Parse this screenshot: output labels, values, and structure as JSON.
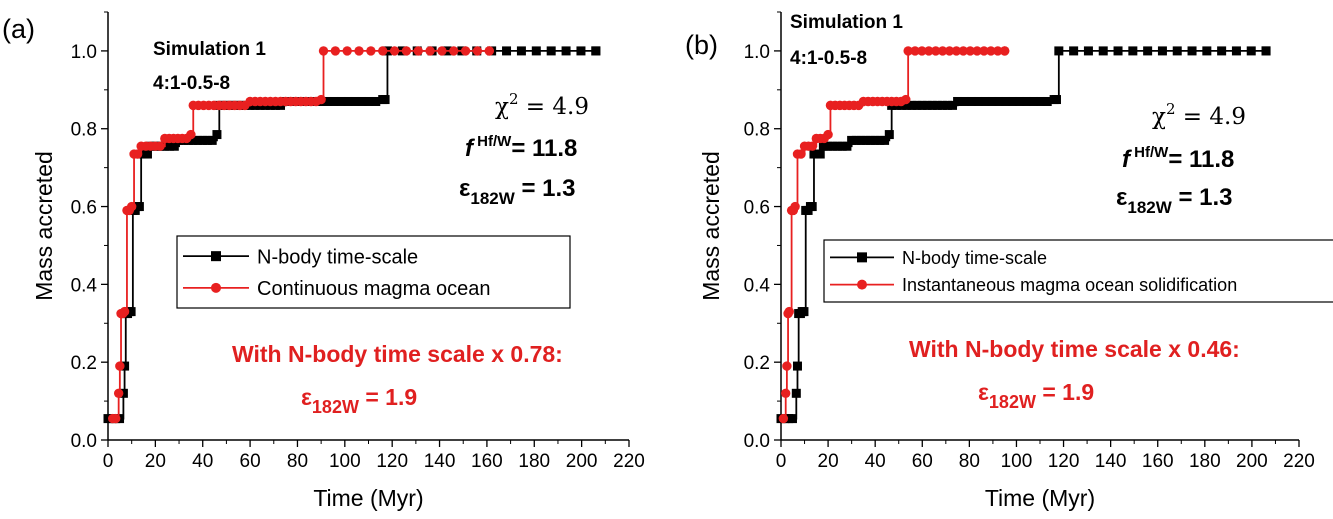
{
  "colors": {
    "black_series": "#000000",
    "red_series": "#e82020",
    "annotation": "#e02020"
  },
  "chart_data": [
    {
      "type": "line",
      "panel_label": "(a)",
      "xlabel": "Time (Myr)",
      "ylabel": "Mass accreted",
      "xlim": [
        0,
        220
      ],
      "ylim": [
        0.0,
        1.1
      ],
      "xticks": [
        0,
        20,
        40,
        60,
        80,
        100,
        120,
        140,
        160,
        180,
        200,
        220
      ],
      "yticks": [
        0.0,
        0.2,
        0.4,
        0.6,
        0.8,
        1.0
      ],
      "ytick_labels": [
        "0.0",
        "0.2",
        "0.4",
        "0.6",
        "0.8",
        "1.0"
      ],
      "grid": false,
      "legend_position": "center",
      "simulation_title": "Simulation 1",
      "simulation_code": "4:1-0.5-8",
      "stats": {
        "chi2_label": "χ",
        "chi2_exp": "2",
        "chi2_value": "= 4.9",
        "f_label": "f",
        "f_sup": "Hf/W",
        "f_value": "= 11.8",
        "eps_label": "ε",
        "eps_sub": "182W",
        "eps_value": "= 1.3"
      },
      "annotation_line1": "With N-body time scale x 0.78:",
      "annotation_eps": "ε",
      "annotation_sub": "182W",
      "annotation_value": "= 1.9",
      "series": [
        {
          "name": "N-body time-scale",
          "color": "#000000",
          "marker": "square",
          "steps": [
            [
              0,
              0.055
            ],
            [
              6.5,
              0.12
            ],
            [
              7,
              0.19
            ],
            [
              7.5,
              0.325
            ],
            [
              9,
              0.33
            ],
            [
              10.5,
              0.59
            ],
            [
              12.5,
              0.6
            ],
            [
              14,
              0.735
            ],
            [
              18,
              0.755
            ],
            [
              30,
              0.77
            ],
            [
              46,
              0.785
            ],
            [
              47,
              0.86
            ],
            [
              75,
              0.87
            ],
            [
              116,
              0.875
            ],
            [
              118,
              1.0
            ],
            [
              206,
              1.0
            ]
          ]
        },
        {
          "name": "Continuous magma ocean",
          "color": "#e82020",
          "marker": "circle",
          "steps": [
            [
              2,
              0.055
            ],
            [
              4.5,
              0.12
            ],
            [
              5,
              0.19
            ],
            [
              5.5,
              0.325
            ],
            [
              7,
              0.33
            ],
            [
              8,
              0.59
            ],
            [
              10,
              0.6
            ],
            [
              11,
              0.735
            ],
            [
              14,
              0.755
            ],
            [
              24,
              0.775
            ],
            [
              35,
              0.785
            ],
            [
              36,
              0.86
            ],
            [
              60,
              0.87
            ],
            [
              90,
              0.875
            ],
            [
              91,
              1.0
            ],
            [
              161,
              1.0
            ]
          ]
        }
      ]
    },
    {
      "type": "line",
      "panel_label": "(b)",
      "xlabel": "Time (Myr)",
      "ylabel": "Mass accreted",
      "xlim": [
        0,
        220
      ],
      "ylim": [
        0.0,
        1.1
      ],
      "xticks": [
        0,
        20,
        40,
        60,
        80,
        100,
        120,
        140,
        160,
        180,
        200,
        220
      ],
      "yticks": [
        0.0,
        0.2,
        0.4,
        0.6,
        0.8,
        1.0
      ],
      "ytick_labels": [
        "0.0",
        "0.2",
        "0.4",
        "0.6",
        "0.8",
        "1.0"
      ],
      "grid": false,
      "legend_position": "center",
      "simulation_title": "Simulation 1",
      "simulation_code": "4:1-0.5-8",
      "stats": {
        "chi2_label": "χ",
        "chi2_exp": "2",
        "chi2_value": "= 4.9",
        "f_label": "f",
        "f_sup": "Hf/W",
        "f_value": "= 11.8",
        "eps_label": "ε",
        "eps_sub": "182W",
        "eps_value": "= 1.3"
      },
      "annotation_line1": "With N-body time scale x 0.46:",
      "annotation_eps": "ε",
      "annotation_sub": "182W",
      "annotation_value": "= 1.9",
      "series": [
        {
          "name": "N-body time-scale",
          "color": "#000000",
          "marker": "square",
          "steps": [
            [
              0,
              0.055
            ],
            [
              6.5,
              0.12
            ],
            [
              7,
              0.19
            ],
            [
              7.5,
              0.325
            ],
            [
              9,
              0.33
            ],
            [
              10.5,
              0.59
            ],
            [
              12.5,
              0.6
            ],
            [
              14,
              0.735
            ],
            [
              18,
              0.755
            ],
            [
              30,
              0.77
            ],
            [
              46,
              0.785
            ],
            [
              47,
              0.86
            ],
            [
              75,
              0.87
            ],
            [
              116,
              0.875
            ],
            [
              118,
              1.0
            ],
            [
              206,
              1.0
            ]
          ]
        },
        {
          "name": "Instantaneous magma ocean solidification",
          "color": "#e82020",
          "marker": "circle",
          "steps": [
            [
              1,
              0.055
            ],
            [
              2,
              0.12
            ],
            [
              2.5,
              0.19
            ],
            [
              3,
              0.325
            ],
            [
              3.5,
              0.33
            ],
            [
              4.5,
              0.59
            ],
            [
              6,
              0.6
            ],
            [
              7,
              0.735
            ],
            [
              10,
              0.755
            ],
            [
              15,
              0.775
            ],
            [
              20,
              0.785
            ],
            [
              21,
              0.86
            ],
            [
              35,
              0.87
            ],
            [
              53,
              0.875
            ],
            [
              54,
              1.0
            ],
            [
              95,
              1.0
            ]
          ]
        }
      ]
    }
  ]
}
